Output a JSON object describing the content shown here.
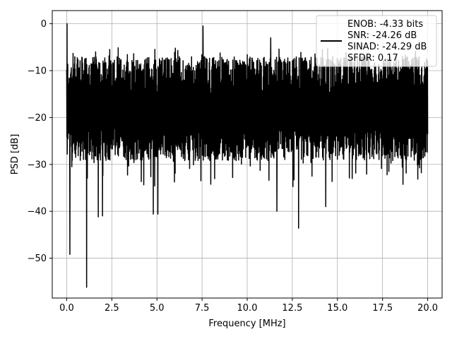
{
  "chart_data": {
    "type": "line",
    "xlabel": "Frequency [MHz]",
    "ylabel": "PSD [dB]",
    "xlim": [
      -0.8,
      20.8
    ],
    "ylim": [
      -58.5,
      2.8
    ],
    "xticks": [
      0.0,
      2.5,
      5.0,
      7.5,
      10.0,
      12.5,
      15.0,
      17.5,
      20.0
    ],
    "xtick_labels": [
      "0.0",
      "2.5",
      "5.0",
      "7.5",
      "10.0",
      "12.5",
      "15.0",
      "17.5",
      "20.0"
    ],
    "yticks": [
      0,
      -10,
      -20,
      -30,
      -40,
      -50
    ],
    "ytick_labels": [
      "0",
      "−10",
      "−20",
      "−30",
      "−40",
      "−50"
    ],
    "grid": true,
    "legend_position": "top-right",
    "series": [
      {
        "name": "ENOB: -4.33 bits\nSNR: -24.26 dB\nSINAD: -24.29 dB\nSFDR: 0.17",
        "color": "#000000",
        "x_start": 0.0,
        "x_end": 20.0,
        "points": 2048,
        "typical_top": -11,
        "typical_floor": -26,
        "peak": {
          "x": 0.02,
          "y": 0.0
        },
        "dips": [
          {
            "x": 0.18,
            "y": -49.2
          },
          {
            "x": 1.1,
            "y": -56.2
          },
          {
            "x": 1.75,
            "y": -41.2
          },
          {
            "x": 1.98,
            "y": -41.0
          },
          {
            "x": 4.8,
            "y": -40.6
          },
          {
            "x": 5.05,
            "y": -40.6
          },
          {
            "x": 11.65,
            "y": -40.0
          },
          {
            "x": 12.85,
            "y": -43.6
          },
          {
            "x": 14.35,
            "y": -39.0
          }
        ],
        "spikes": [
          {
            "x": 7.55,
            "y": -0.5
          },
          {
            "x": 11.3,
            "y": -3.0
          }
        ]
      }
    ]
  },
  "legend": {
    "lines": [
      "ENOB: -4.33 bits",
      "SNR: -24.26 dB",
      "SINAD: -24.29 dB",
      "SFDR: 0.17"
    ],
    "line_color": "#000000"
  }
}
